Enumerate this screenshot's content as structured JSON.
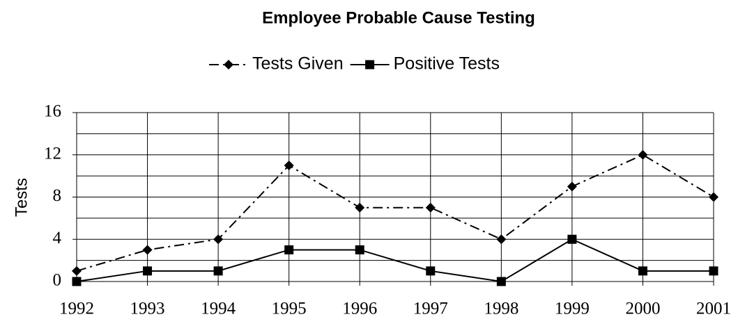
{
  "chart_data": {
    "type": "line",
    "title": "Employee Probable Cause Testing",
    "y_label": "Tests",
    "x": [
      1992,
      1993,
      1994,
      1995,
      1996,
      1997,
      1998,
      1999,
      2000,
      2001
    ],
    "xlim": [
      1992,
      2001
    ],
    "xticks": [
      1992,
      1993,
      1994,
      1995,
      1996,
      1997,
      1998,
      1999,
      2000,
      2001
    ],
    "ylim": [
      0,
      16
    ],
    "yticks": [
      0,
      4,
      8,
      12,
      16
    ],
    "y_minor_grid": [
      2,
      6,
      10,
      14
    ],
    "grid": true,
    "legend": "top",
    "series": [
      {
        "name": "Tests Given",
        "color": "#000000",
        "dash": "dash-dot",
        "marker": "diamond",
        "values": [
          1,
          3,
          4,
          11,
          7,
          7,
          4,
          9,
          12,
          8
        ]
      },
      {
        "name": "Positive Tests",
        "color": "#000000",
        "dash": "solid",
        "marker": "square",
        "values": [
          0,
          1,
          1,
          3,
          3,
          1,
          0,
          4,
          1,
          1
        ]
      }
    ]
  }
}
